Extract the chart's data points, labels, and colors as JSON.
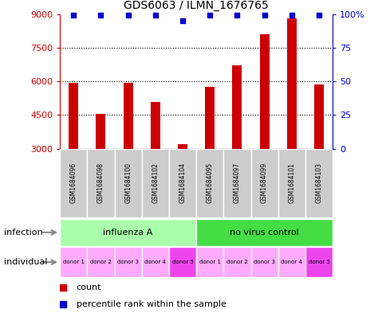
{
  "title": "GDS6063 / ILMN_1676765",
  "samples": [
    "GSM1684096",
    "GSM1684098",
    "GSM1684100",
    "GSM1684102",
    "GSM1684104",
    "GSM1684095",
    "GSM1684097",
    "GSM1684099",
    "GSM1684101",
    "GSM1684103"
  ],
  "counts": [
    5950,
    4550,
    5950,
    5100,
    3200,
    5750,
    6700,
    8100,
    8800,
    5850
  ],
  "percentiles": [
    99,
    99,
    99,
    99,
    95,
    99,
    99,
    99,
    99,
    99
  ],
  "ylim_left": [
    3000,
    9000
  ],
  "ylim_right": [
    0,
    100
  ],
  "yticks_left": [
    3000,
    4500,
    6000,
    7500,
    9000
  ],
  "yticks_right": [
    0,
    25,
    50,
    75,
    100
  ],
  "grid_lines": [
    4500,
    6000,
    7500
  ],
  "infection_groups": [
    {
      "label": "influenza A",
      "start": 0,
      "end": 5,
      "color": "#AAFFAA"
    },
    {
      "label": "no virus control",
      "start": 5,
      "end": 10,
      "color": "#44DD44"
    }
  ],
  "donors": [
    "donor 1",
    "donor 2",
    "donor 3",
    "donor 4",
    "donor 5",
    "donor 1",
    "donor 2",
    "donor 3",
    "donor 4",
    "donor 5"
  ],
  "donor_colors": [
    "#FFAAFF",
    "#FFAAFF",
    "#FFAAFF",
    "#FFAAFF",
    "#EE44EE",
    "#FFAAFF",
    "#FFAAFF",
    "#FFAAFF",
    "#FFAAFF",
    "#EE44EE"
  ],
  "bar_color": "#CC0000",
  "dot_color": "#0000CC",
  "background_color": "#FFFFFF",
  "bar_width": 0.35,
  "label_infection": "infection",
  "label_individual": "individual",
  "legend_count_color": "#CC0000",
  "legend_pct_color": "#0000CC",
  "sample_box_color": "#CCCCCC",
  "left_axis_color": "#CC0000",
  "right_axis_color": "#0000CC"
}
